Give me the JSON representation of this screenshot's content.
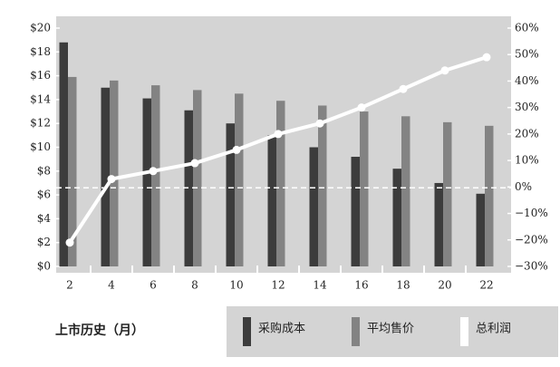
{
  "chart_data": {
    "type": "bar",
    "x_label": "上市历史（月）",
    "categories": [
      "2",
      "4",
      "6",
      "8",
      "10",
      "12",
      "14",
      "16",
      "18",
      "20",
      "22"
    ],
    "series": [
      {
        "name": "采购成本",
        "color": "#3c3c3c",
        "values": [
          18.8,
          15.0,
          14.1,
          13.1,
          12.0,
          11.0,
          10.0,
          9.2,
          8.2,
          7.0,
          6.1
        ]
      },
      {
        "name": "平均售价",
        "color": "#838383",
        "values": [
          15.9,
          15.6,
          15.2,
          14.8,
          14.5,
          13.9,
          13.5,
          13.0,
          12.6,
          12.1,
          11.8
        ]
      },
      {
        "name": "总利润",
        "color": "#ffffff",
        "type": "line",
        "axis": "y2",
        "values": [
          -21,
          3,
          6,
          9,
          14,
          20,
          24,
          30,
          37,
          44,
          49
        ]
      }
    ],
    "ylim": [
      0,
      20
    ],
    "yticks": [
      {
        "value": 0,
        "label": "$0"
      },
      {
        "value": 2,
        "label": "$2"
      },
      {
        "value": 4,
        "label": "$4"
      },
      {
        "value": 6,
        "label": "$6"
      },
      {
        "value": 8,
        "label": "$8"
      },
      {
        "value": 10,
        "label": "$10"
      },
      {
        "value": 12,
        "label": "$12"
      },
      {
        "value": 14,
        "label": "$14"
      },
      {
        "value": 16,
        "label": "$16"
      },
      {
        "value": 18,
        "label": "$18"
      },
      {
        "value": 20,
        "label": "$20"
      }
    ],
    "y2lim": [
      -30,
      60
    ],
    "y2ticks": [
      {
        "value": -30,
        "label": "−30%"
      },
      {
        "value": -20,
        "label": "−20%"
      },
      {
        "value": -10,
        "label": "−10%"
      },
      {
        "value": 0,
        "label": "0%"
      },
      {
        "value": 10,
        "label": "10%"
      },
      {
        "value": 20,
        "label": "20%"
      },
      {
        "value": 30,
        "label": "30%"
      },
      {
        "value": 40,
        "label": "40%"
      },
      {
        "value": 50,
        "label": "50%"
      },
      {
        "value": 60,
        "label": "60%"
      }
    ],
    "reference_line": 6.6
  }
}
